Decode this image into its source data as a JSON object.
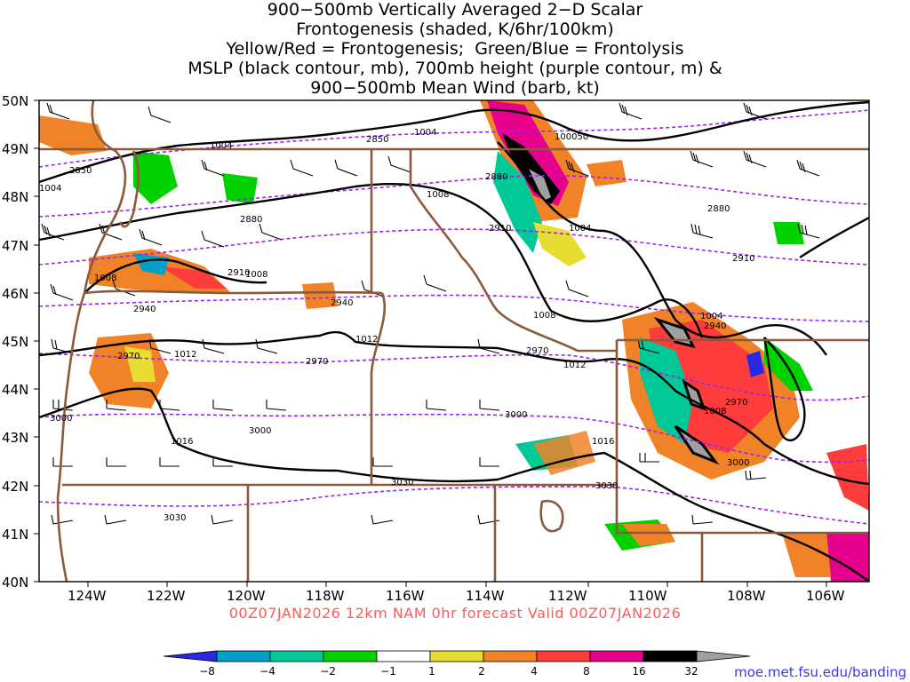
{
  "title_lines": [
    "900−500mb Vertically Averaged 2−D Scalar",
    "Frontogenesis (shaded, K/6hr/100km)",
    "Yellow/Red = Frontogenesis;  Green/Blue = Frontolysis",
    "MSLP (black contour, mb), 700mb height (purple contour, m) &",
    "900−500mb Mean Wind (barb, kt)"
  ],
  "lat_labels": [
    "50N",
    "49N",
    "48N",
    "47N",
    "46N",
    "45N",
    "44N",
    "43N",
    "42N",
    "41N",
    "40N"
  ],
  "lon_labels": [
    "124W",
    "122W",
    "120W",
    "118W",
    "116W",
    "114W",
    "112W",
    "110W",
    "108W",
    "106W"
  ],
  "mslp_labels": [
    "1004",
    "1004",
    "1004",
    "1008",
    "1008",
    "1008",
    "1004",
    "1008",
    "1012",
    "1012",
    "1012",
    "1016",
    "1016",
    "1008",
    "1004"
  ],
  "height_labels": [
    "2850",
    "2850",
    "2880",
    "2880",
    "2880",
    "2910",
    "2910",
    "2910",
    "2940",
    "2940",
    "2940",
    "2970",
    "2970",
    "2970",
    "2970",
    "3000",
    "3000",
    "3000",
    "3030",
    "3030",
    "3030",
    "3000"
  ],
  "special_labels": [
    "100050"
  ],
  "valid_text": "00Z07JAN2026  12km NAM 0hr forecast Valid 00Z07JAN2026",
  "credit": "moe.met.fsu.edu/banding",
  "colorbar": {
    "labels": [
      "−8",
      "−4",
      "−2",
      "−1",
      "1",
      "2",
      "4",
      "8",
      "16",
      "32"
    ],
    "colors": [
      "#2828e6",
      "#00a0c8",
      "#00c896",
      "#00d200",
      "#ffffff",
      "#e6dc32",
      "#f08228",
      "#ff3c3c",
      "#e6008c",
      "#000000",
      "#a0a0a0"
    ]
  },
  "colors": {
    "mslp": "#000000",
    "height": "#a020f0",
    "border": "#8b5a3c",
    "valid_text": "#ff5a5a",
    "credit": "#3a3ad8"
  }
}
